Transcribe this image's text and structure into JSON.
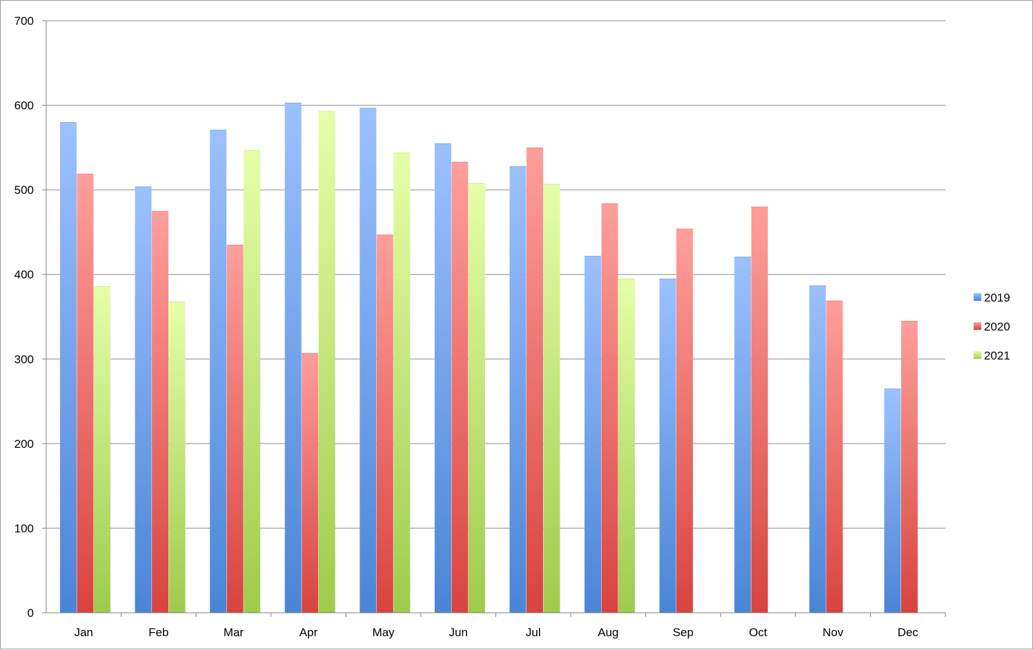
{
  "chart_data": {
    "type": "bar",
    "title": "",
    "xlabel": "",
    "ylabel": "",
    "categories": [
      "Jan",
      "Feb",
      "Mar",
      "Apr",
      "May",
      "Jun",
      "Jul",
      "Aug",
      "Sep",
      "Oct",
      "Nov",
      "Dec"
    ],
    "series": [
      {
        "name": "2019",
        "color": "#4a85d6",
        "color_light": "#9cc1ff",
        "values": [
          580,
          504,
          571,
          603,
          597,
          555,
          528,
          422,
          395,
          421,
          387,
          265
        ]
      },
      {
        "name": "2020",
        "color": "#d8433f",
        "color_light": "#ff9f9b",
        "values": [
          519,
          475,
          435,
          307,
          447,
          533,
          550,
          484,
          454,
          480,
          369,
          345
        ]
      },
      {
        "name": "2021",
        "color": "#9fcb4c",
        "color_light": "#e5ffa8",
        "values": [
          386,
          368,
          547,
          593,
          544,
          508,
          507,
          395,
          null,
          null,
          null,
          null
        ]
      }
    ],
    "ylim": [
      0,
      700
    ],
    "yticks": [
      0,
      100,
      200,
      300,
      400,
      500,
      600,
      700
    ],
    "grid": true,
    "legend_position": "right"
  }
}
